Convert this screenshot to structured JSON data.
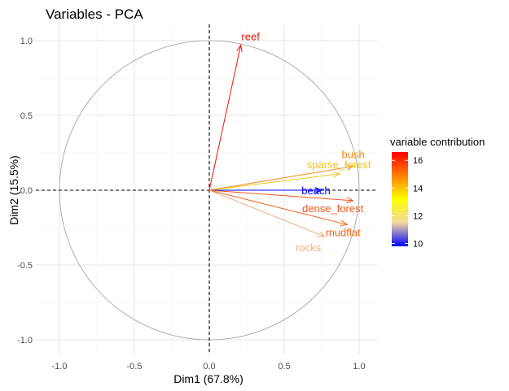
{
  "chart_data": {
    "type": "scatter",
    "subtype": "pca-variable-correlation-circle",
    "title": "Variables - PCA",
    "xlabel": "Dim1 (67.8%)",
    "ylabel": "Dim2 (15.5%)",
    "xlim": [
      -1.0,
      1.0
    ],
    "ylim": [
      -1.0,
      1.0
    ],
    "xticks": [
      -1.0,
      -0.5,
      0.0,
      0.5,
      1.0
    ],
    "xtick_labels": [
      "-1.0",
      "-0.5",
      "0.0",
      "0.5",
      "1.0"
    ],
    "yticks": [
      -1.0,
      -0.5,
      0.0,
      0.5,
      1.0
    ],
    "ytick_labels": [
      "-1.0",
      "-0.5",
      "0.0",
      "0.5",
      "1.0"
    ],
    "grid": true,
    "unit_circle": true,
    "reference_lines": "dashed at x=0 and y=0",
    "legend": {
      "title": "variable contribution",
      "placement": "right",
      "type": "colorbar",
      "range": [
        9.8,
        16.6
      ],
      "ticks": [
        10,
        12,
        14,
        16
      ],
      "tick_labels": [
        "10",
        "12",
        "14",
        "16"
      ],
      "colors": [
        "#0000ff",
        "#f0d9a0",
        "#ffff00",
        "#ff7f00",
        "#ff0000"
      ]
    },
    "variables": [
      {
        "name": "reef",
        "x": 0.21,
        "y": 0.97,
        "contrib": 16.4,
        "color": "#e8140c"
      },
      {
        "name": "bush",
        "x": 0.96,
        "y": 0.16,
        "contrib": 15.0,
        "color": "#f28a12"
      },
      {
        "name": "sparse_forest",
        "x": 0.87,
        "y": 0.11,
        "contrib": 13.9,
        "color": "#f2c313"
      },
      {
        "name": "beach",
        "x": 0.75,
        "y": 0.0,
        "contrib": 9.9,
        "color": "#0000ff"
      },
      {
        "name": "dense_forest",
        "x": 0.96,
        "y": -0.07,
        "contrib": 15.3,
        "color": "#f0561a"
      },
      {
        "name": "mudflat",
        "x": 0.92,
        "y": -0.23,
        "contrib": 15.1,
        "color": "#f26316"
      },
      {
        "name": "rocks",
        "x": 0.77,
        "y": -0.31,
        "contrib": 12.1,
        "color": "#f0ae80"
      }
    ]
  }
}
